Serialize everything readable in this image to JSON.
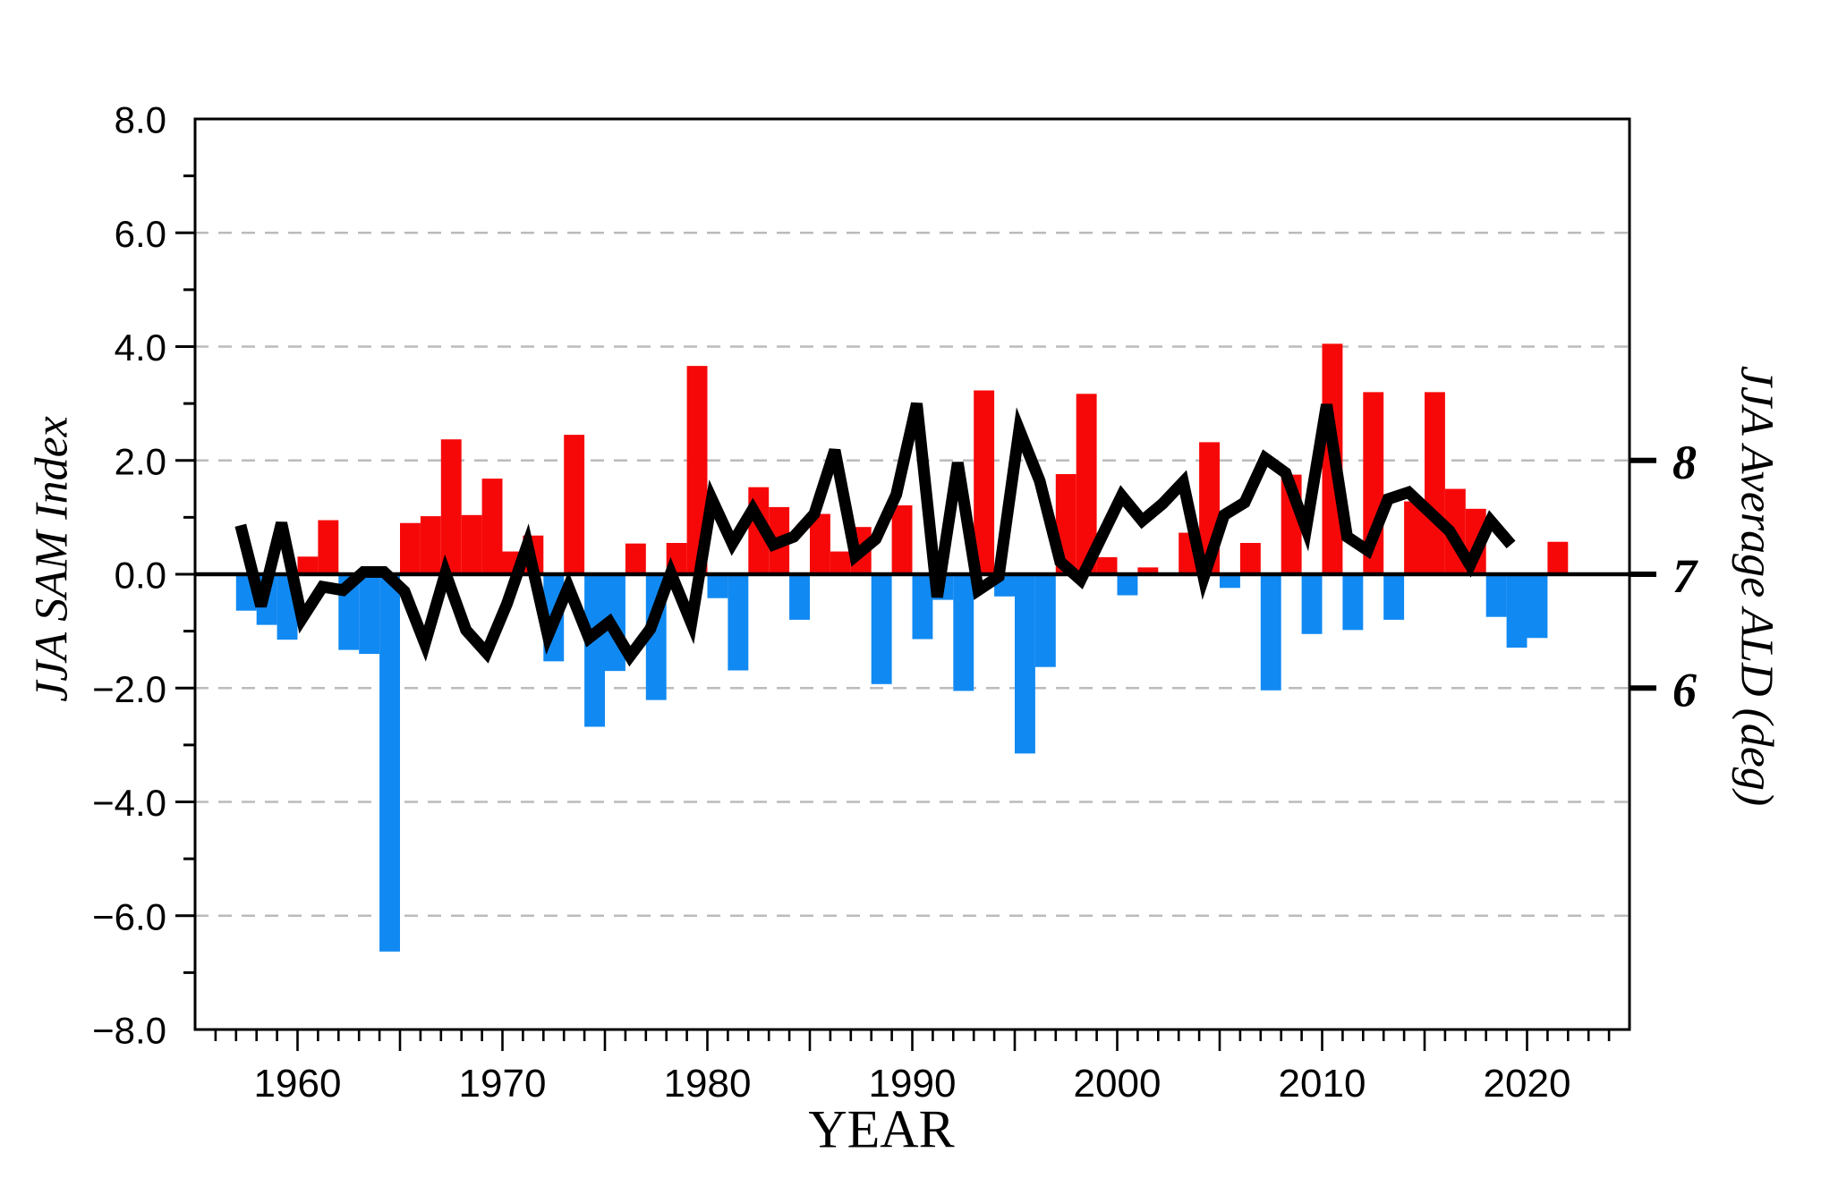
{
  "page": {
    "background": "#FFFFFF"
  },
  "titles": {
    "x_axis": "YEAR",
    "left_axis": "JJA SAM Index",
    "right_axis": "JJA Average ALD (deg)"
  },
  "chart_data": {
    "type": "bar",
    "subtype": "dual-axis bar+line combo",
    "title": "",
    "xlabel": "YEAR",
    "ylabel_left": "JJA SAM Index",
    "ylabel_right": "JJA Average ALD (deg)",
    "x_range": [
      1955,
      2025
    ],
    "left_y_range": [
      -8,
      8
    ],
    "grid": "horizontal dashed gridlines at -6,-4,-2,2,4,6 (left scale); solid thick line at 0",
    "legend_position": "none",
    "right_axis_mapping": "ALD_value = 7 + SAM_value/2 (ALD 8 aligns with SAM +2, ALD 7 with 0, ALD 6 with -2)",
    "colors": {
      "bar_positive": "#F70808",
      "bar_negative": "#1189F2",
      "line": "#000000",
      "gridline": "#BBBBBB",
      "axis": "#000000"
    },
    "left_tick_labels": [
      {
        "v": 8,
        "label": "8.0"
      },
      {
        "v": 6,
        "label": "6.0"
      },
      {
        "v": 4,
        "label": "4.0"
      },
      {
        "v": 2,
        "label": "2.0"
      },
      {
        "v": 0,
        "label": "0.0"
      },
      {
        "v": -2,
        "label": "−2.0"
      },
      {
        "v": -4,
        "label": "−4.0"
      },
      {
        "v": -6,
        "label": "−6.0"
      },
      {
        "v": -8,
        "label": "−8.0"
      }
    ],
    "bottom_tick_labels": [
      {
        "year": 1960,
        "label": "1960"
      },
      {
        "year": 1970,
        "label": "1970"
      },
      {
        "year": 1980,
        "label": "1980"
      },
      {
        "year": 1990,
        "label": "1990"
      },
      {
        "year": 2000,
        "label": "2000"
      },
      {
        "year": 2010,
        "label": "2010"
      },
      {
        "year": 2020,
        "label": "2020"
      }
    ],
    "right_tick_labels": [
      {
        "ald": 8,
        "label": "8"
      },
      {
        "ald": 7,
        "label": "7"
      },
      {
        "ald": 6,
        "label": "6"
      }
    ],
    "bar_series": {
      "name": "JJA SAM Index",
      "axis": "left",
      "years": [
        1957,
        1958,
        1959,
        1960,
        1961,
        1962,
        1963,
        1964,
        1965,
        1966,
        1967,
        1968,
        1969,
        1970,
        1971,
        1972,
        1973,
        1974,
        1975,
        1976,
        1977,
        1978,
        1979,
        1980,
        1981,
        1982,
        1983,
        1984,
        1985,
        1986,
        1987,
        1988,
        1989,
        1990,
        1991,
        1992,
        1993,
        1994,
        1995,
        1996,
        1997,
        1998,
        1999,
        2000,
        2001,
        2002,
        2003,
        2004,
        2005,
        2006,
        2007,
        2008,
        2009,
        2010,
        2011,
        2012,
        2013,
        2014,
        2015,
        2016,
        2017,
        2018,
        2019,
        2020,
        2021
      ],
      "values": [
        -0.64,
        -0.89,
        -1.15,
        0.31,
        0.95,
        -1.33,
        -1.4,
        -6.63,
        0.9,
        1.02,
        2.37,
        1.04,
        1.68,
        0.4,
        0.68,
        -1.53,
        2.45,
        -2.68,
        -1.7,
        0.54,
        -2.21,
        0.55,
        3.66,
        -0.42,
        -1.69,
        1.53,
        1.18,
        -0.8,
        1.06,
        0.4,
        0.83,
        -1.93,
        1.21,
        -1.14,
        -0.45,
        -2.05,
        3.23,
        -0.39,
        -3.15,
        -1.63,
        1.76,
        3.17,
        0.3,
        -0.37,
        0.12,
        0.0,
        0.73,
        2.32,
        -0.24,
        0.55,
        -2.04,
        1.75,
        -1.05,
        4.05,
        -0.98,
        3.2,
        -0.8,
        1.28,
        3.2,
        1.5,
        1.15,
        -0.75,
        -1.29,
        -1.12,
        0.57
      ]
    },
    "line_series": {
      "name": "JJA Average ALD (deg)",
      "axis": "right",
      "years": [
        1957,
        1958,
        1959,
        1960,
        1961,
        1962,
        1963,
        1964,
        1965,
        1966,
        1967,
        1968,
        1969,
        1970,
        1971,
        1972,
        1973,
        1974,
        1975,
        1976,
        1977,
        1978,
        1979,
        1980,
        1981,
        1982,
        1983,
        1984,
        1985,
        1986,
        1987,
        1988,
        1989,
        1990,
        1991,
        1992,
        1993,
        1994,
        1995,
        1996,
        1997,
        1998,
        1999,
        2000,
        2001,
        2002,
        2003,
        2004,
        2005,
        2006,
        2007,
        2008,
        2009,
        2010,
        2011,
        2012,
        2013,
        2014,
        2015,
        2016,
        2017,
        2018,
        2019
      ],
      "values": [
        7.43,
        6.72,
        7.45,
        6.61,
        6.89,
        6.86,
        7.02,
        7.02,
        6.85,
        6.39,
        7.01,
        6.51,
        6.31,
        6.74,
        7.26,
        6.46,
        6.89,
        6.44,
        6.58,
        6.28,
        6.52,
        7.01,
        6.57,
        7.66,
        7.27,
        7.57,
        7.26,
        7.33,
        7.53,
        8.09,
        7.16,
        7.31,
        7.7,
        8.5,
        6.8,
        7.98,
        6.86,
        6.98,
        8.27,
        7.82,
        7.11,
        6.95,
        7.32,
        7.69,
        7.47,
        7.62,
        7.81,
        6.97,
        7.52,
        7.63,
        8.02,
        7.89,
        7.4,
        8.49,
        7.33,
        7.21,
        7.66,
        7.72,
        7.55,
        7.38,
        7.08,
        7.47,
        7.26
      ]
    }
  }
}
